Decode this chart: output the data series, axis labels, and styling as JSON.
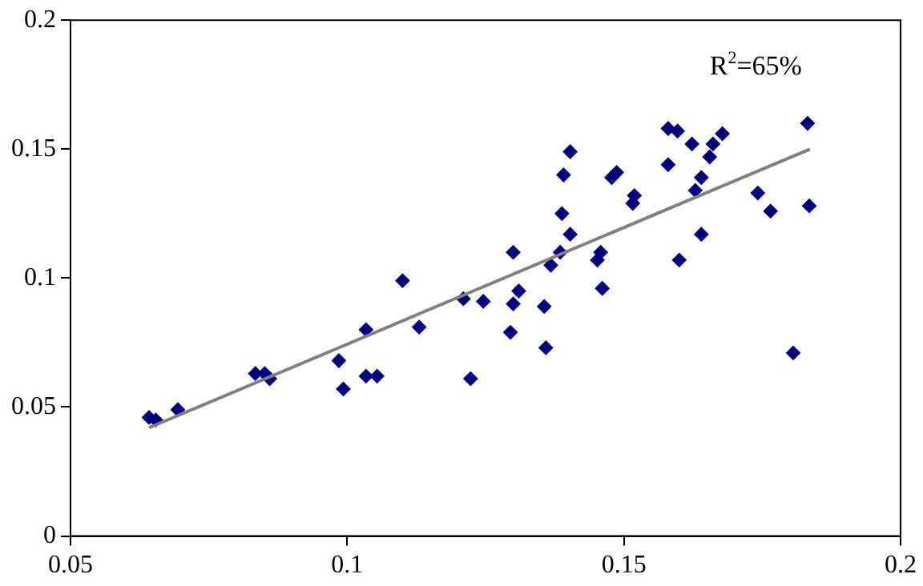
{
  "chart_data": {
    "type": "scatter",
    "marker": "diamond",
    "grid": false,
    "legend": false,
    "xlim": [
      0.05,
      0.2
    ],
    "xticks": [
      0.05,
      0.1,
      0.15,
      0.2
    ],
    "ylim": [
      0,
      0.2
    ],
    "yticks": [
      0,
      0.05,
      0.1,
      0.15,
      0.2
    ],
    "annotations": [
      "R$^{2}$=65%"
    ],
    "series": [
      {
        "color": "#000080",
        "x": [
          0.0642,
          0.0654,
          0.0694,
          0.0834,
          0.0851,
          0.086,
          0.0985,
          0.0993,
          0.1034,
          0.1034,
          0.1054,
          0.11,
          0.113,
          0.121,
          0.1223,
          0.1246,
          0.1295,
          0.13,
          0.13,
          0.131,
          0.1356,
          0.1359,
          0.1368,
          0.1385,
          0.1388,
          0.1391,
          0.1403,
          0.1403,
          0.1452,
          0.1458,
          0.1461,
          0.1478,
          0.1487,
          0.1516,
          0.1519,
          0.158,
          0.158,
          0.1597,
          0.16,
          0.1623,
          0.1629,
          0.164,
          0.164,
          0.1655,
          0.1661,
          0.1678,
          0.1742,
          0.1765,
          0.1806,
          0.1832,
          0.1835
        ],
        "values": [
          0.046,
          0.045,
          0.049,
          0.063,
          0.063,
          0.061,
          0.068,
          0.057,
          0.08,
          0.062,
          0.062,
          0.099,
          0.081,
          0.092,
          0.061,
          0.091,
          0.079,
          0.11,
          0.09,
          0.095,
          0.089,
          0.073,
          0.105,
          0.11,
          0.125,
          0.14,
          0.117,
          0.149,
          0.107,
          0.11,
          0.096,
          0.139,
          0.141,
          0.129,
          0.132,
          0.144,
          0.158,
          0.157,
          0.107,
          0.152,
          0.134,
          0.139,
          0.117,
          0.147,
          0.152,
          0.156,
          0.133,
          0.126,
          0.071,
          0.16,
          0.128
        ]
      },
      {
        "type": "line",
        "color": "#808080",
        "marker": "none",
        "x": [
          0.0642,
          0.1836
        ],
        "values": [
          0.042,
          0.15
        ]
      }
    ]
  }
}
